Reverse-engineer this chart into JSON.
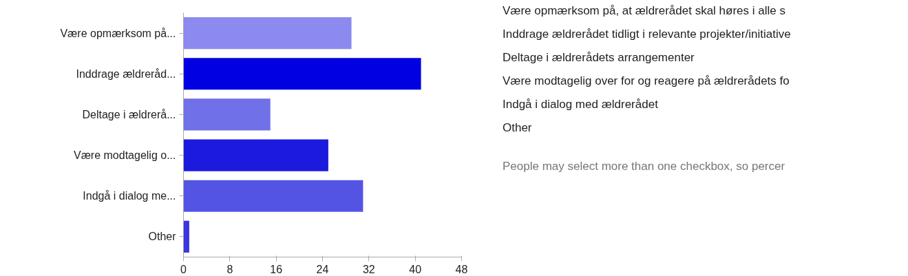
{
  "chart_data": {
    "type": "bar",
    "orientation": "horizontal",
    "categories": [
      "Være opmærksom på...",
      "Inddrage ældreråd...",
      "Deltage i ældrerå...",
      "Være modtagelig o...",
      "Indgå i dialog me...",
      "Other"
    ],
    "values": [
      29,
      41,
      15,
      25,
      31,
      1
    ],
    "colors": [
      "#8c8aee",
      "#0000e0",
      "#7070e8",
      "#1d1adf",
      "#5454e4",
      "#3a36e2"
    ],
    "xlim": [
      0,
      48
    ],
    "xticks": [
      0,
      8,
      16,
      24,
      32,
      40,
      48
    ],
    "grid": false,
    "annotations": [
      "Være opmærksom på, at ældrerådet skal høres i alle s",
      "Inddrage ældrerådet tidligt i relevante projekter/initiative",
      "Deltage i ældrerådets arrangementer",
      "Være modtagelig over for og reagere på ældrerådets fo",
      "Indgå i dialog med ældrerådet",
      "Other",
      "People may select more than one checkbox, so percer"
    ]
  }
}
